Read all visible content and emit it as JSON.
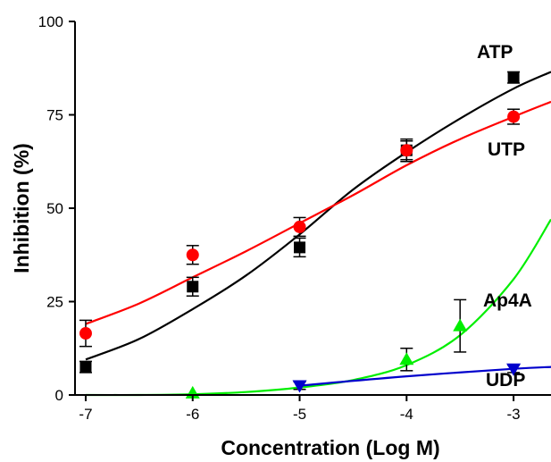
{
  "chart_data": {
    "type": "scatter",
    "xlabel": "Concentration (Log M)",
    "ylabel": "Inhibition (%)",
    "xlim": [
      -7.1,
      -2.65
    ],
    "ylim": [
      0,
      100
    ],
    "x_ticks": [
      -7,
      -6,
      -5,
      -4,
      -3
    ],
    "x_tick_labels": [
      "-7",
      "-6",
      "-5",
      "-4",
      "-3"
    ],
    "y_ticks": [
      0,
      25,
      50,
      75,
      100
    ],
    "y_tick_labels": [
      "0",
      "25",
      "50",
      "75",
      "100"
    ],
    "series": [
      {
        "name": "ATP",
        "color": "#000000",
        "marker": "square",
        "points": [
          {
            "x": -7,
            "y": 7.5,
            "err": 1.5
          },
          {
            "x": -6,
            "y": 29,
            "err": 2.5
          },
          {
            "x": -5,
            "y": 39.5,
            "err": 2.5
          },
          {
            "x": -4,
            "y": 65.5,
            "err": 3
          },
          {
            "x": -3,
            "y": 85,
            "err": 1.5
          }
        ],
        "curve": [
          [
            -7.0,
            9.5
          ],
          [
            -6.5,
            15
          ],
          [
            -6.0,
            23
          ],
          [
            -5.5,
            32
          ],
          [
            -5.0,
            43
          ],
          [
            -4.5,
            55
          ],
          [
            -4.0,
            65
          ],
          [
            -3.5,
            74
          ],
          [
            -3.0,
            82
          ],
          [
            -2.65,
            86.5
          ]
        ]
      },
      {
        "name": "UTP",
        "color": "#ff0000",
        "marker": "circle",
        "points": [
          {
            "x": -7,
            "y": 16.5,
            "err": 3.5
          },
          {
            "x": -6,
            "y": 37.5,
            "err": 2.5
          },
          {
            "x": -5,
            "y": 45,
            "err": 2.5
          },
          {
            "x": -4,
            "y": 65.5,
            "err": 2.5
          },
          {
            "x": -3,
            "y": 74.5,
            "err": 2
          }
        ],
        "curve": [
          [
            -7.0,
            19
          ],
          [
            -6.5,
            24.5
          ],
          [
            -6.0,
            31.5
          ],
          [
            -5.5,
            38.5
          ],
          [
            -5.0,
            46
          ],
          [
            -4.5,
            53.5
          ],
          [
            -4.0,
            61.5
          ],
          [
            -3.5,
            68.5
          ],
          [
            -3.0,
            74.5
          ],
          [
            -2.65,
            78.5
          ]
        ]
      },
      {
        "name": "Ap4A",
        "color": "#00ee00",
        "marker": "triangle-up",
        "points": [
          {
            "x": -6,
            "y": 0.5,
            "err": 0
          },
          {
            "x": -4,
            "y": 9.5,
            "err": 3
          },
          {
            "x": -3.5,
            "y": 18.5,
            "err": 7
          }
        ],
        "curve": [
          [
            -7.0,
            0
          ],
          [
            -6.5,
            0
          ],
          [
            -6.0,
            0.2
          ],
          [
            -5.5,
            0.8
          ],
          [
            -5.0,
            2
          ],
          [
            -4.5,
            4
          ],
          [
            -4.0,
            8
          ],
          [
            -3.5,
            16
          ],
          [
            -3.0,
            31
          ],
          [
            -2.65,
            47
          ]
        ]
      },
      {
        "name": "UDP",
        "color": "#0000cc",
        "marker": "triangle-down",
        "points": [
          {
            "x": -5,
            "y": 2.5,
            "err": 1
          },
          {
            "x": -3,
            "y": 7,
            "err": 1
          }
        ],
        "curve": [
          [
            -5.0,
            2.5
          ],
          [
            -4.0,
            5
          ],
          [
            -3.0,
            7
          ],
          [
            -2.65,
            7.5
          ]
        ]
      }
    ]
  }
}
